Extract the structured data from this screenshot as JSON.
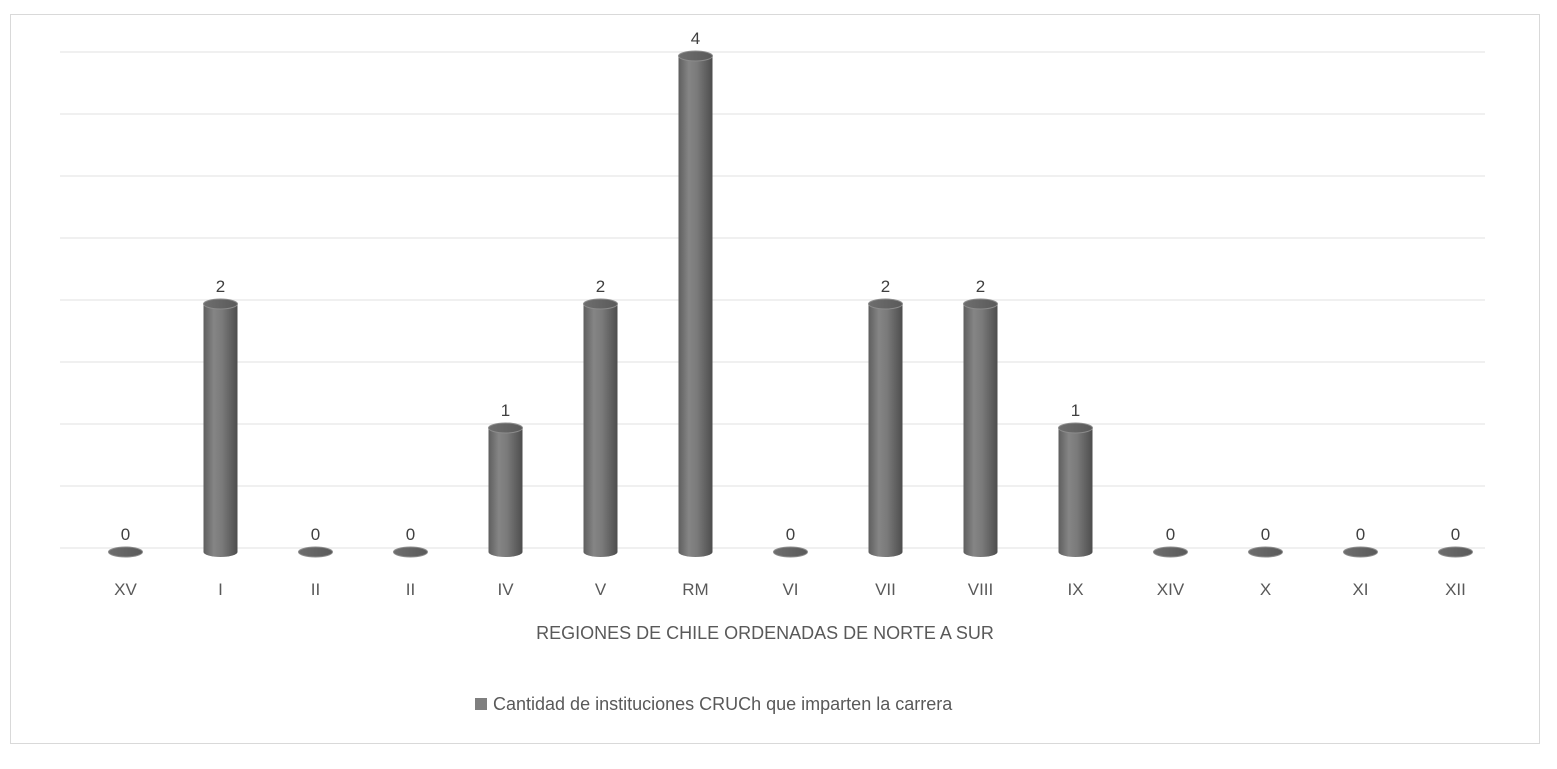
{
  "chart_data": {
    "type": "bar",
    "categories": [
      "XV",
      "I",
      "II",
      "II",
      "IV",
      "V",
      "RM",
      "VI",
      "VII",
      "VIII",
      "IX",
      "XIV",
      "X",
      "XI",
      "XII"
    ],
    "series": [
      {
        "name": "Cantidad de instituciones CRUCh que imparten la carrera",
        "values": [
          0,
          2,
          0,
          0,
          1,
          2,
          4,
          0,
          2,
          2,
          1,
          0,
          0,
          0,
          0
        ]
      }
    ],
    "xlabel": "REGIONES DE CHILE ORDENADAS DE NORTE A SUR",
    "ylabel": "",
    "ylim": [
      0,
      4
    ],
    "grid": true,
    "legend_position": "bottom",
    "bar_style": "cylinder",
    "bar_color": "#7f7f7f"
  }
}
